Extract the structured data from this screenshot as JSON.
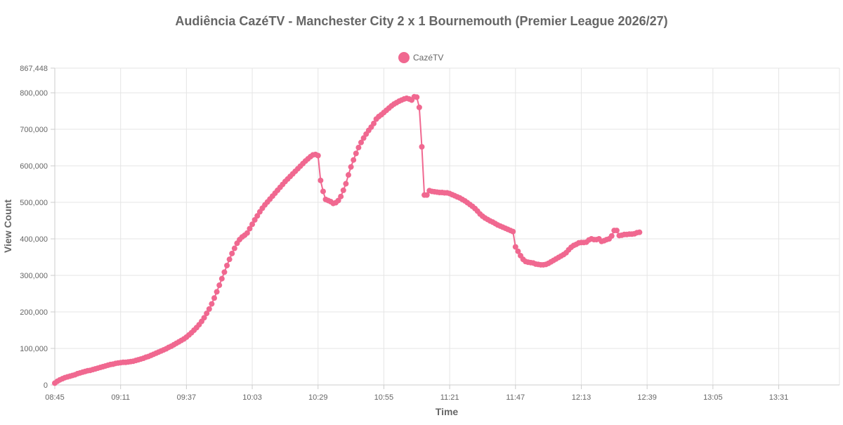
{
  "chart_data": {
    "type": "line",
    "title": "Audiência CazéTV - Manchester City 2 x 1 Bournemouth (Premier League 2026/27)",
    "xlabel": "Time",
    "ylabel": "View Count",
    "legend": {
      "position": "top",
      "entries": [
        "CazéTV"
      ]
    },
    "x_ticks": [
      "08:45",
      "09:11",
      "09:37",
      "10:03",
      "10:29",
      "10:55",
      "11:21",
      "11:47",
      "12:13",
      "12:39",
      "13:05",
      "13:31"
    ],
    "y_ticks": [
      "0",
      "100,000",
      "200,000",
      "300,000",
      "400,000",
      "500,000",
      "600,000",
      "700,000",
      "800,000",
      "867,448"
    ],
    "x_range": [
      "08:45",
      "13:55"
    ],
    "ylim": [
      0,
      867448
    ],
    "grid": true,
    "color": "#f06890",
    "series": [
      {
        "name": "CazéTV",
        "points": [
          [
            "08:45",
            5000
          ],
          [
            "08:46",
            10000
          ],
          [
            "08:47",
            14000
          ],
          [
            "08:48",
            17000
          ],
          [
            "08:49",
            20000
          ],
          [
            "08:50",
            22000
          ],
          [
            "08:51",
            24000
          ],
          [
            "08:52",
            26000
          ],
          [
            "08:53",
            28000
          ],
          [
            "08:54",
            31000
          ],
          [
            "08:55",
            33000
          ],
          [
            "08:56",
            35000
          ],
          [
            "08:57",
            37000
          ],
          [
            "08:58",
            39000
          ],
          [
            "08:59",
            40000
          ],
          [
            "09:00",
            42000
          ],
          [
            "09:01",
            44000
          ],
          [
            "09:02",
            46000
          ],
          [
            "09:03",
            48000
          ],
          [
            "09:04",
            50000
          ],
          [
            "09:05",
            52000
          ],
          [
            "09:06",
            54000
          ],
          [
            "09:07",
            56000
          ],
          [
            "09:08",
            57000
          ],
          [
            "09:09",
            59000
          ],
          [
            "09:10",
            60000
          ],
          [
            "09:11",
            61000
          ],
          [
            "09:12",
            62000
          ],
          [
            "09:13",
            62000
          ],
          [
            "09:14",
            63000
          ],
          [
            "09:15",
            64000
          ],
          [
            "09:16",
            65000
          ],
          [
            "09:17",
            67000
          ],
          [
            "09:18",
            69000
          ],
          [
            "09:19",
            71000
          ],
          [
            "09:20",
            73000
          ],
          [
            "09:21",
            76000
          ],
          [
            "09:22",
            78000
          ],
          [
            "09:23",
            81000
          ],
          [
            "09:24",
            84000
          ],
          [
            "09:25",
            87000
          ],
          [
            "09:26",
            90000
          ],
          [
            "09:27",
            93000
          ],
          [
            "09:28",
            96000
          ],
          [
            "09:29",
            99000
          ],
          [
            "09:30",
            103000
          ],
          [
            "09:31",
            106000
          ],
          [
            "09:32",
            110000
          ],
          [
            "09:33",
            114000
          ],
          [
            "09:34",
            118000
          ],
          [
            "09:35",
            122000
          ],
          [
            "09:36",
            126000
          ],
          [
            "09:37",
            131000
          ],
          [
            "09:38",
            137000
          ],
          [
            "09:39",
            143000
          ],
          [
            "09:40",
            150000
          ],
          [
            "09:41",
            157000
          ],
          [
            "09:42",
            165000
          ],
          [
            "09:43",
            174000
          ],
          [
            "09:44",
            184000
          ],
          [
            "09:45",
            196000
          ],
          [
            "09:46",
            208000
          ],
          [
            "09:47",
            222000
          ],
          [
            "09:48",
            238000
          ],
          [
            "09:49",
            255000
          ],
          [
            "09:50",
            273000
          ],
          [
            "09:51",
            291000
          ],
          [
            "09:52",
            309000
          ],
          [
            "09:53",
            327000
          ],
          [
            "09:54",
            344000
          ],
          [
            "09:55",
            360000
          ],
          [
            "09:56",
            374000
          ],
          [
            "09:57",
            388000
          ],
          [
            "09:58",
            398000
          ],
          [
            "09:59",
            405000
          ],
          [
            "10:00",
            410000
          ],
          [
            "10:01",
            416000
          ],
          [
            "10:02",
            428000
          ],
          [
            "10:03",
            440000
          ],
          [
            "10:04",
            452000
          ],
          [
            "10:05",
            463000
          ],
          [
            "10:06",
            474000
          ],
          [
            "10:07",
            484000
          ],
          [
            "10:08",
            493000
          ],
          [
            "10:09",
            501000
          ],
          [
            "10:10",
            509000
          ],
          [
            "10:11",
            517000
          ],
          [
            "10:12",
            525000
          ],
          [
            "10:13",
            533000
          ],
          [
            "10:14",
            541000
          ],
          [
            "10:15",
            549000
          ],
          [
            "10:16",
            557000
          ],
          [
            "10:17",
            564000
          ],
          [
            "10:18",
            571000
          ],
          [
            "10:19",
            578000
          ],
          [
            "10:20",
            585000
          ],
          [
            "10:21",
            592000
          ],
          [
            "10:22",
            599000
          ],
          [
            "10:23",
            606000
          ],
          [
            "10:24",
            613000
          ],
          [
            "10:25",
            619000
          ],
          [
            "10:26",
            625000
          ],
          [
            "10:27",
            630000
          ],
          [
            "10:28",
            631000
          ],
          [
            "10:29",
            628000
          ],
          [
            "10:30",
            560000
          ],
          [
            "10:31",
            530000
          ],
          [
            "10:32",
            508000
          ],
          [
            "10:33",
            505000
          ],
          [
            "10:34",
            502000
          ],
          [
            "10:35",
            497000
          ],
          [
            "10:36",
            499000
          ],
          [
            "10:37",
            505000
          ],
          [
            "10:38",
            516000
          ],
          [
            "10:39",
            533000
          ],
          [
            "10:40",
            551000
          ],
          [
            "10:41",
            575000
          ],
          [
            "10:42",
            597000
          ],
          [
            "10:43",
            616000
          ],
          [
            "10:44",
            634000
          ],
          [
            "10:45",
            650000
          ],
          [
            "10:46",
            664000
          ],
          [
            "10:47",
            676000
          ],
          [
            "10:48",
            687000
          ],
          [
            "10:49",
            697000
          ],
          [
            "10:50",
            706000
          ],
          [
            "10:51",
            716000
          ],
          [
            "10:52",
            728000
          ],
          [
            "10:53",
            735000
          ],
          [
            "10:54",
            740000
          ],
          [
            "10:55",
            746000
          ],
          [
            "10:56",
            752000
          ],
          [
            "10:57",
            758000
          ],
          [
            "10:58",
            764000
          ],
          [
            "10:59",
            769000
          ],
          [
            "11:00",
            773000
          ],
          [
            "11:01",
            777000
          ],
          [
            "11:02",
            780000
          ],
          [
            "11:03",
            783000
          ],
          [
            "11:04",
            785000
          ],
          [
            "11:05",
            783000
          ],
          [
            "11:06",
            780000
          ],
          [
            "11:07",
            789000
          ],
          [
            "11:08",
            788000
          ],
          [
            "11:09",
            760000
          ],
          [
            "11:10",
            652000
          ],
          [
            "11:11",
            520000
          ],
          [
            "11:12",
            520000
          ],
          [
            "11:13",
            532000
          ],
          [
            "11:14",
            530000
          ],
          [
            "11:15",
            529000
          ],
          [
            "11:16",
            528000
          ],
          [
            "11:17",
            527000
          ],
          [
            "11:18",
            527000
          ],
          [
            "11:19",
            526000
          ],
          [
            "11:20",
            526000
          ],
          [
            "11:21",
            524000
          ],
          [
            "11:22",
            521000
          ],
          [
            "11:23",
            518000
          ],
          [
            "11:24",
            515000
          ],
          [
            "11:25",
            512000
          ],
          [
            "11:26",
            508000
          ],
          [
            "11:27",
            504000
          ],
          [
            "11:28",
            499000
          ],
          [
            "11:29",
            494000
          ],
          [
            "11:30",
            489000
          ],
          [
            "11:31",
            483000
          ],
          [
            "11:32",
            476000
          ],
          [
            "11:33",
            468000
          ],
          [
            "11:34",
            462000
          ],
          [
            "11:35",
            457000
          ],
          [
            "11:36",
            453000
          ],
          [
            "11:37",
            449000
          ],
          [
            "11:38",
            446000
          ],
          [
            "11:39",
            442000
          ],
          [
            "11:40",
            438000
          ],
          [
            "11:41",
            435000
          ],
          [
            "11:42",
            432000
          ],
          [
            "11:43",
            429000
          ],
          [
            "11:44",
            426000
          ],
          [
            "11:45",
            423000
          ],
          [
            "11:46",
            420000
          ],
          [
            "11:47",
            378000
          ],
          [
            "11:48",
            366000
          ],
          [
            "11:49",
            354000
          ],
          [
            "11:50",
            344000
          ],
          [
            "11:51",
            338000
          ],
          [
            "11:52",
            336000
          ],
          [
            "11:53",
            335000
          ],
          [
            "11:54",
            334000
          ],
          [
            "11:55",
            331000
          ],
          [
            "11:56",
            330000
          ],
          [
            "11:57",
            329000
          ],
          [
            "11:58",
            329000
          ],
          [
            "11:59",
            330000
          ],
          [
            "12:00",
            333000
          ],
          [
            "12:01",
            337000
          ],
          [
            "12:02",
            341000
          ],
          [
            "12:03",
            345000
          ],
          [
            "12:04",
            349000
          ],
          [
            "12:05",
            353000
          ],
          [
            "12:06",
            357000
          ],
          [
            "12:07",
            362000
          ],
          [
            "12:08",
            370000
          ],
          [
            "12:09",
            377000
          ],
          [
            "12:10",
            382000
          ],
          [
            "12:11",
            385000
          ],
          [
            "12:12",
            389000
          ],
          [
            "12:13",
            390000
          ],
          [
            "12:14",
            390000
          ],
          [
            "12:15",
            391000
          ],
          [
            "12:16",
            397000
          ],
          [
            "12:17",
            400000
          ],
          [
            "12:18",
            398000
          ],
          [
            "12:19",
            398000
          ],
          [
            "12:20",
            400000
          ],
          [
            "12:21",
            393000
          ],
          [
            "12:22",
            395000
          ],
          [
            "12:23",
            398000
          ],
          [
            "12:24",
            400000
          ],
          [
            "12:25",
            408000
          ],
          [
            "12:26",
            423000
          ],
          [
            "12:27",
            423000
          ],
          [
            "12:28",
            409000
          ],
          [
            "12:29",
            410000
          ],
          [
            "12:30",
            412000
          ],
          [
            "12:31",
            412000
          ],
          [
            "12:32",
            413000
          ],
          [
            "12:33",
            413000
          ],
          [
            "12:34",
            414000
          ],
          [
            "12:35",
            417000
          ],
          [
            "12:36",
            418000
          ]
        ]
      }
    ]
  }
}
